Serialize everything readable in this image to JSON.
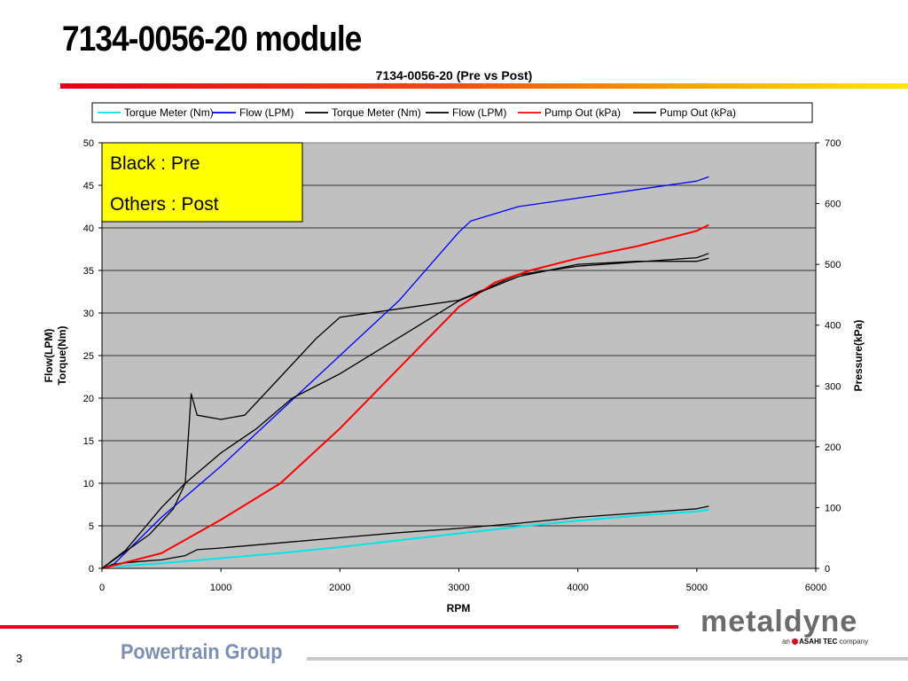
{
  "slide": {
    "title": "7134-0056-20 module",
    "page_number": "3",
    "footer_text": "Powertrain Group",
    "logo_text": "metaldyne",
    "logo_sub_prefix": "an",
    "logo_sub_brand": "ASAHI TEC",
    "logo_sub_suffix": "company"
  },
  "chart_data": {
    "type": "line",
    "title": "7134-0056-20 (Pre vs Post)",
    "xlabel": "RPM",
    "ylabel_left_line1": "Flow(LPM)",
    "ylabel_left_line2": "Torque(Nm)",
    "ylabel_right": "Pressure(kPa)",
    "xlim": [
      0,
      6000
    ],
    "ylim_left": [
      0,
      50
    ],
    "ylim_right": [
      0,
      700
    ],
    "x_ticks": [
      0,
      1000,
      2000,
      3000,
      4000,
      5000,
      6000
    ],
    "y_ticks_left": [
      0,
      5,
      10,
      15,
      20,
      25,
      30,
      35,
      40,
      45,
      50
    ],
    "y_ticks_right": [
      0,
      100,
      200,
      300,
      400,
      500,
      600,
      700
    ],
    "grid": true,
    "plot_background": "#c0c0c0",
    "legend_position": "top",
    "annotation_lines": [
      "Black : Pre",
      "Others : Post"
    ],
    "series": [
      {
        "name": "Torque Meter (Nm)",
        "color": "#00e5e5",
        "axis": "left",
        "width": 2,
        "x": [
          0,
          80,
          120,
          200,
          500,
          1000,
          1500,
          2000,
          2500,
          3000,
          3500,
          4000,
          4500,
          5000,
          5100
        ],
        "y": [
          0,
          0.5,
          0.3,
          0.3,
          0.6,
          1.2,
          1.8,
          2.5,
          3.3,
          4.1,
          4.9,
          5.6,
          6.2,
          6.7,
          6.9
        ]
      },
      {
        "name": "Flow (LPM)",
        "color": "#0000ff",
        "axis": "left",
        "width": 1.3,
        "x": [
          0,
          100,
          500,
          1000,
          1500,
          2000,
          2500,
          3000,
          3100,
          3500,
          4000,
          4500,
          5000,
          5100
        ],
        "y": [
          0,
          0.5,
          6,
          12,
          18.5,
          25,
          31.5,
          39.5,
          40.8,
          42.5,
          43.5,
          44.5,
          45.5,
          46
        ]
      },
      {
        "name": "Torque Meter (Nm)",
        "color": "#000000",
        "axis": "left",
        "width": 1.3,
        "x": [
          0,
          100,
          300,
          500,
          700,
          800,
          1000,
          1500,
          2000,
          2500,
          3000,
          3500,
          4000,
          4500,
          5000,
          5100
        ],
        "y": [
          0,
          0.5,
          0.8,
          1,
          1.5,
          2.2,
          2.4,
          3,
          3.6,
          4.2,
          4.7,
          5.3,
          6,
          6.5,
          7,
          7.3
        ]
      },
      {
        "name": "Flow (LPM)",
        "color": "#000000",
        "axis": "left",
        "width": 1.3,
        "x": [
          0,
          200,
          400,
          600,
          700,
          750,
          800,
          1000,
          1200,
          1500,
          1800,
          2000,
          2500,
          3000,
          3500,
          4000,
          4500,
          5000,
          5100
        ],
        "y": [
          0,
          2,
          4,
          7,
          10,
          20.5,
          18,
          17.5,
          18,
          22.5,
          27,
          29.5,
          30.5,
          31.5,
          34.5,
          35.5,
          36,
          36.5,
          37
        ]
      },
      {
        "name": "Pump Out (kPa)",
        "color": "#ff0000",
        "axis": "right",
        "width": 2,
        "x": [
          0,
          100,
          500,
          1000,
          1500,
          2000,
          2500,
          3000,
          3300,
          3600,
          4000,
          4500,
          5000,
          5100
        ],
        "y": [
          0,
          5,
          25,
          80,
          140,
          230,
          330,
          430,
          470,
          490,
          510,
          530,
          555,
          565
        ]
      },
      {
        "name": "Pump Out (kPa)",
        "color": "#000000",
        "axis": "right",
        "width": 1.3,
        "x": [
          0,
          200,
          500,
          700,
          1000,
          1300,
          1600,
          2000,
          2500,
          3000,
          3500,
          4000,
          4500,
          5000,
          5100
        ],
        "y": [
          0,
          30,
          100,
          140,
          190,
          230,
          280,
          320,
          380,
          440,
          480,
          500,
          505,
          505,
          510
        ]
      }
    ]
  }
}
